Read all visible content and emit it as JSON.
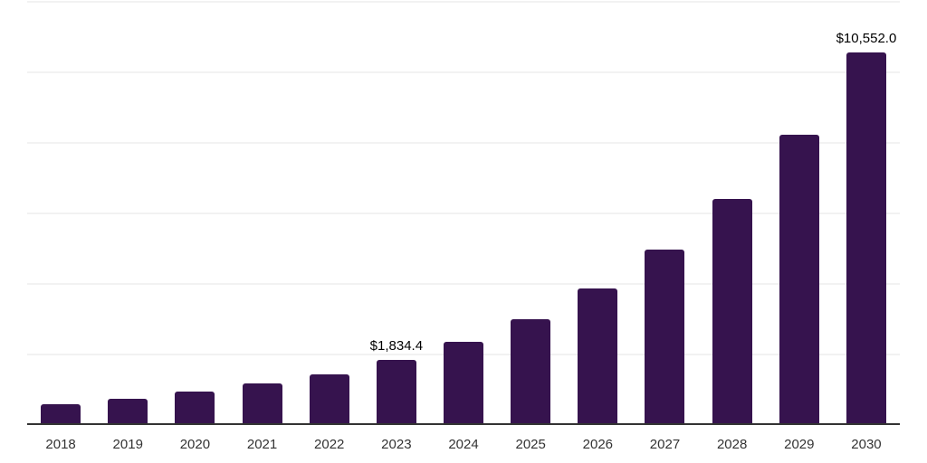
{
  "chart_data": {
    "type": "bar",
    "title": "",
    "xlabel": "",
    "ylabel": "",
    "categories": [
      "2018",
      "2019",
      "2020",
      "2021",
      "2022",
      "2023",
      "2024",
      "2025",
      "2026",
      "2027",
      "2028",
      "2029",
      "2030"
    ],
    "values": [
      590,
      745,
      950,
      1180,
      1435,
      1834.4,
      2360,
      3005,
      3870,
      4975,
      6410,
      8230,
      10552
    ],
    "data_labels": [
      "",
      "",
      "",
      "",
      "",
      "$1,834.4",
      "",
      "",
      "",
      "",
      "",
      "",
      "$10,552.0"
    ],
    "ylim": [
      0,
      12000
    ],
    "gridline_step": 2000,
    "grid": true,
    "legend": false,
    "colors": {
      "bar": "#36134E",
      "gridline": "#f2f2f2",
      "axis_line": "#333333",
      "tick_label": "#333333",
      "data_label": "#000000",
      "background": "#ffffff"
    }
  }
}
